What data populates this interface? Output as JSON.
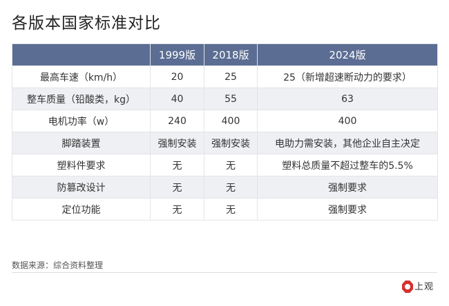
{
  "title": "各版本国家标准对比",
  "table": {
    "headers": [
      "",
      "1999版",
      "2018版",
      "2024版"
    ],
    "rows": [
      [
        "最高车速（km/h）",
        "20",
        "25",
        "25（新增超速断动力的要求）"
      ],
      [
        "整车质量（铅酸类，kg）",
        "40",
        "55",
        "63"
      ],
      [
        "电机功率（w）",
        "240",
        "400",
        "400"
      ],
      [
        "脚踏装置",
        "强制安装",
        "强制安装",
        "电助力需安装，其他企业自主决定"
      ],
      [
        "塑料件要求",
        "无",
        "无",
        "塑料总质量不超过整车的5.5%"
      ],
      [
        "防篡改设计",
        "无",
        "无",
        "强制要求"
      ],
      [
        "定位功能",
        "无",
        "无",
        "强制要求"
      ]
    ]
  },
  "source": "数据来源：综合资料整理",
  "logo": {
    "text": "上观"
  },
  "colors": {
    "header_bg": "#5b6d93",
    "alt_row_bg": "#eef0f3",
    "logo_red": "#d4322f"
  }
}
